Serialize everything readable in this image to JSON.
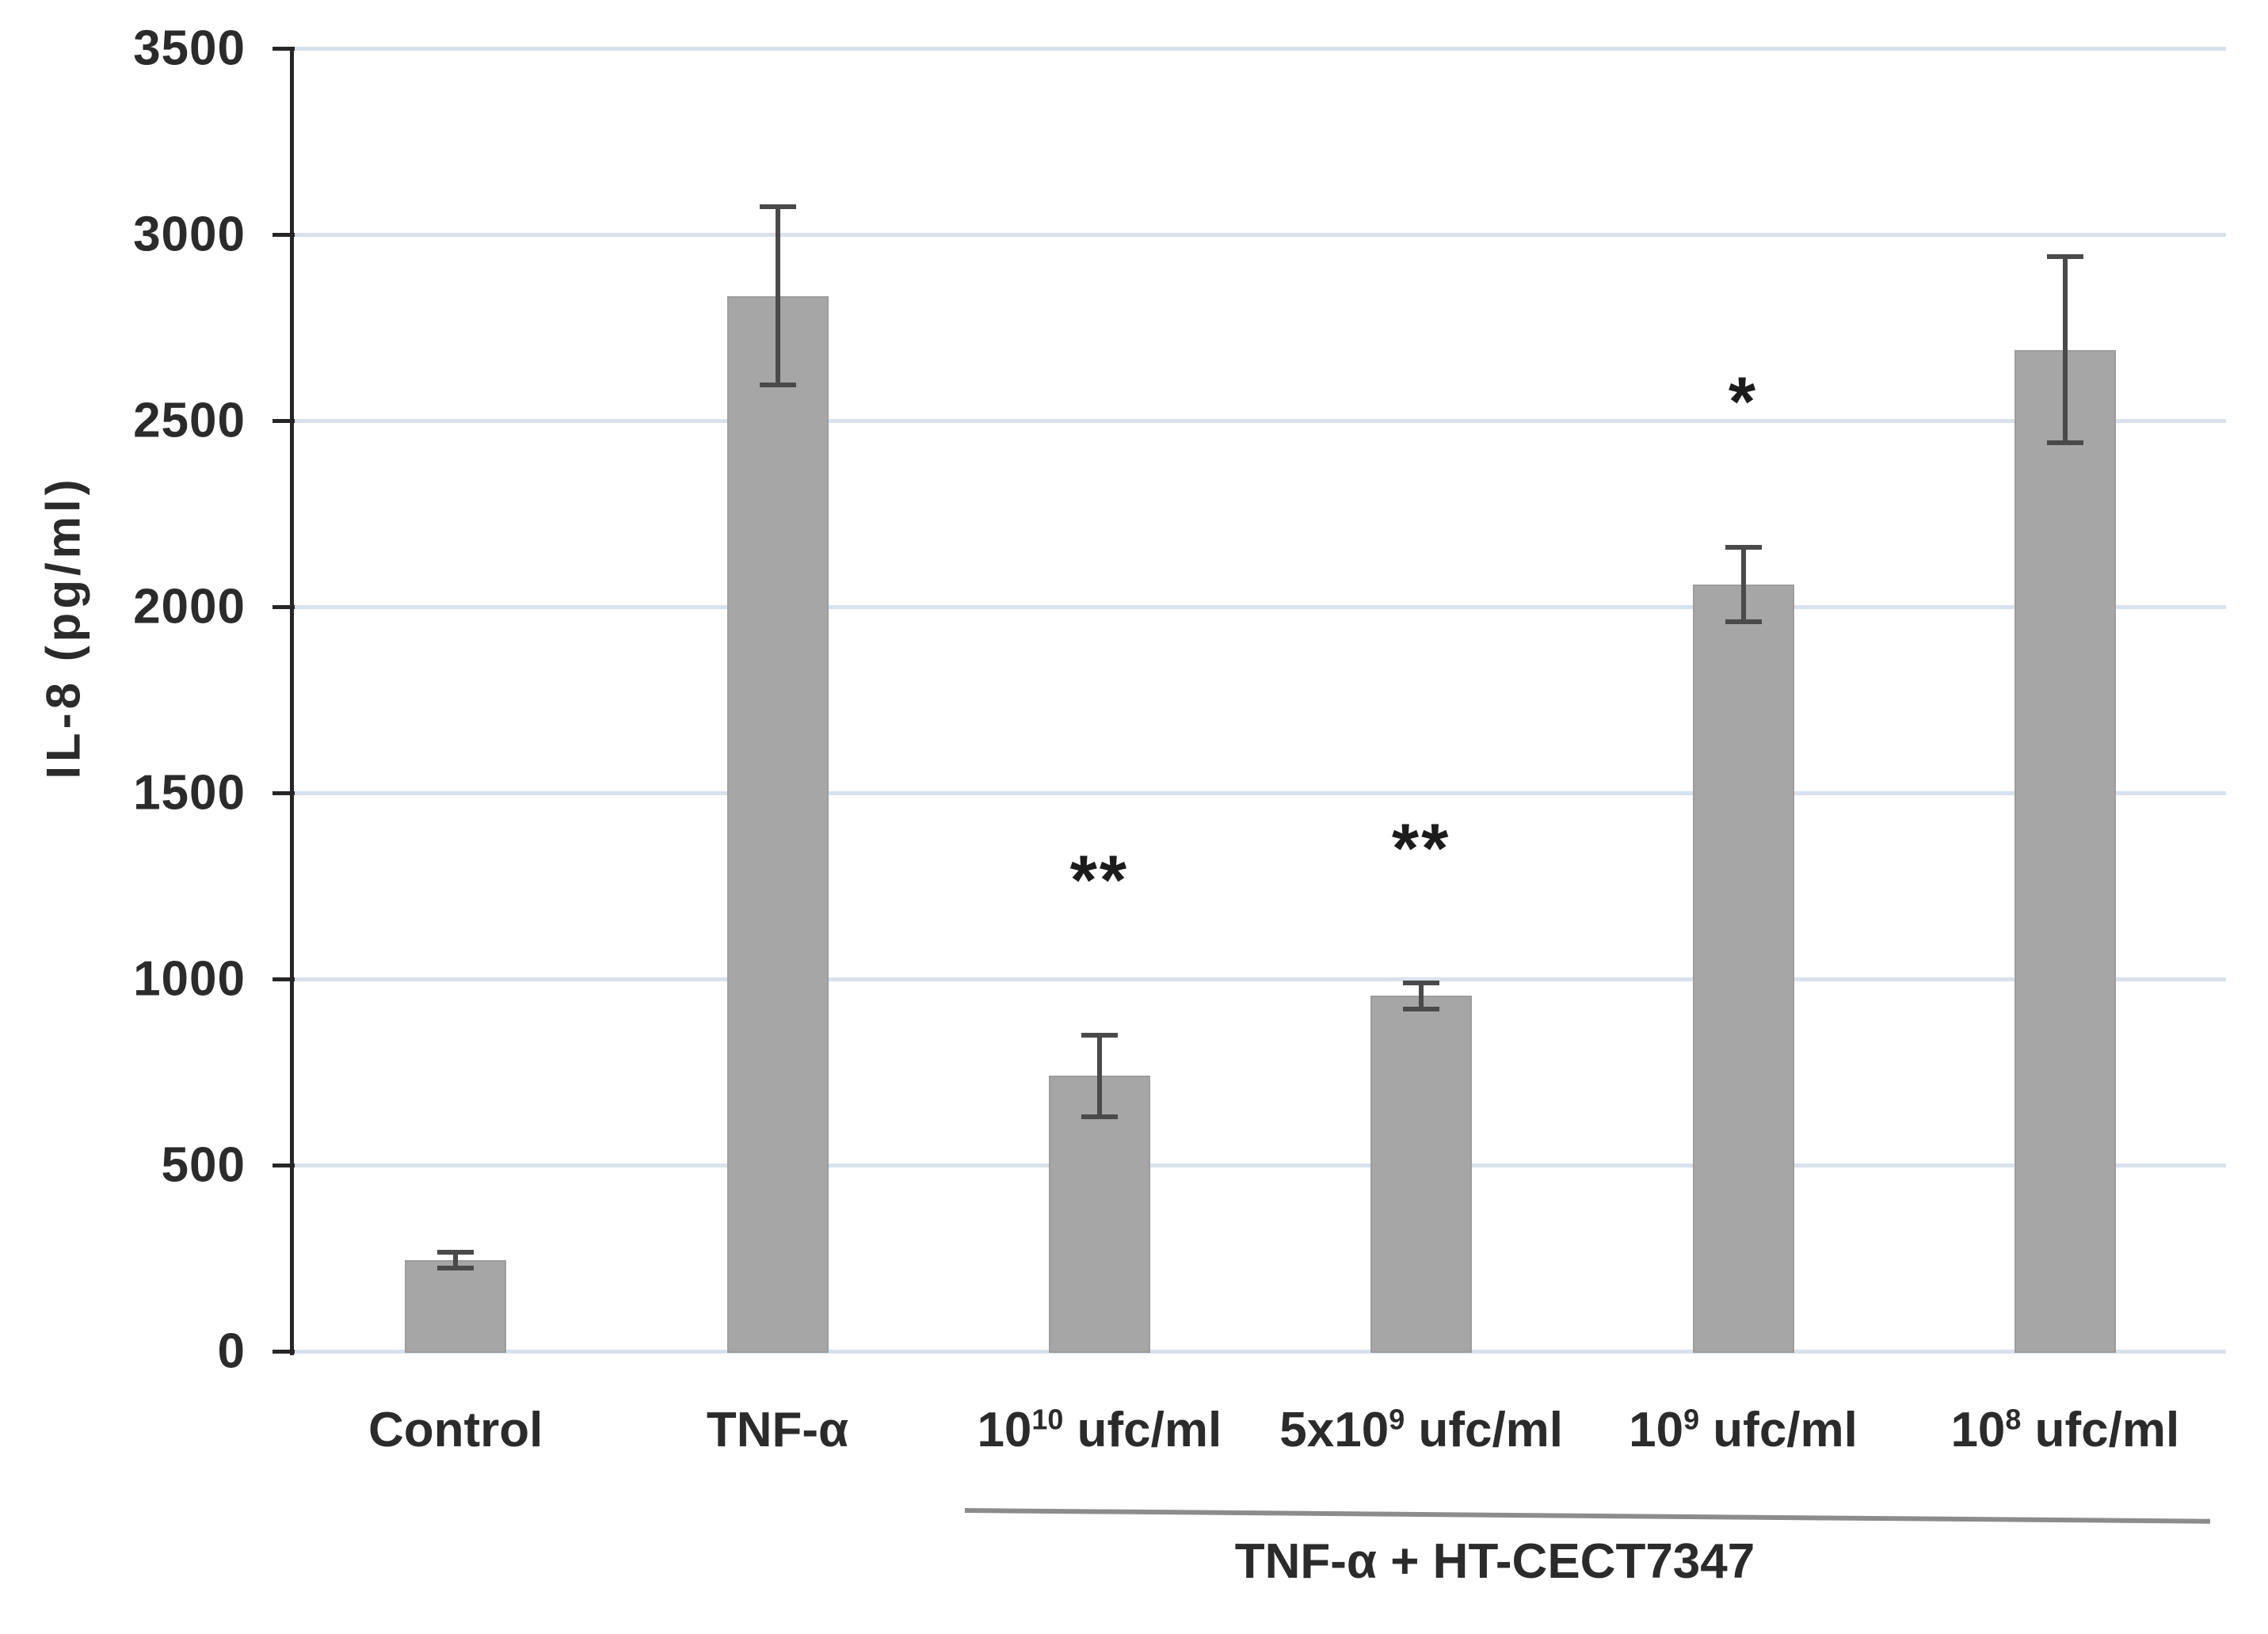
{
  "chart_data": {
    "type": "bar",
    "title": "",
    "ylabel": "IL-8 (pg/ml)",
    "xlabel": "",
    "ylim": [
      0,
      3500
    ],
    "yticks": [
      0,
      500,
      1000,
      1500,
      2000,
      2500,
      3000,
      3500
    ],
    "grid": true,
    "legend": false,
    "categories": [
      {
        "prefix": "Control",
        "sup": "",
        "suffix": ""
      },
      {
        "prefix": "TNF-α",
        "sup": "",
        "suffix": ""
      },
      {
        "prefix": "10",
        "sup": "10",
        "suffix": " ufc/ml"
      },
      {
        "prefix": "5x10",
        "sup": "9",
        "suffix": " ufc/ml"
      },
      {
        "prefix": "10",
        "sup": "9",
        "suffix": " ufc/ml"
      },
      {
        "prefix": "10",
        "sup": "8",
        "suffix": " ufc/ml"
      }
    ],
    "series": [
      {
        "name": "IL-8",
        "values": [
          245,
          2835,
          740,
          955,
          2060,
          2690
        ],
        "errors": [
          22,
          240,
          110,
          35,
          100,
          250
        ]
      }
    ],
    "annotations": [
      {
        "category_index": 2,
        "text": "**",
        "value": 1255
      },
      {
        "category_index": 3,
        "text": "**",
        "value": 1340
      },
      {
        "category_index": 4,
        "text": "*",
        "value": 2540
      }
    ],
    "group_label": "TNF-α + HT-CECT7347",
    "group_span": {
      "from_category_index": 2,
      "to_category_index": 5
    },
    "colors": {
      "bar": "#a6a6a6",
      "bar_border": "#9d9d9d",
      "gridline": "#d8e2ee",
      "axis": "#262626",
      "error_bar": "#4a4a4a",
      "text": "#2b2b2b",
      "group_line": "#8c8c8c",
      "background": "#ffffff"
    }
  }
}
